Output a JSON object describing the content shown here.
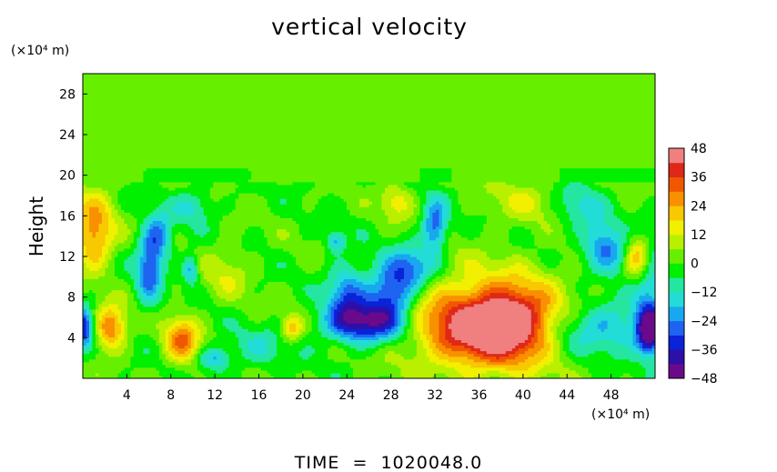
{
  "chart_data": {
    "type": "heatmap",
    "title": "vertical velocity",
    "xlabel": "",
    "ylabel": "Height",
    "x_unit_label": "(×10⁴ m)",
    "y_unit_label": "(×10⁴ m)",
    "footer": "TIME  =  1020048.0",
    "xlim": [
      0,
      52
    ],
    "ylim": [
      0,
      30
    ],
    "x_ticks": [
      4,
      8,
      12,
      16,
      20,
      24,
      28,
      32,
      36,
      40,
      44,
      48
    ],
    "y_ticks": [
      4,
      8,
      12,
      16,
      20,
      24,
      28
    ],
    "colorbar": {
      "ticks": [
        48,
        36,
        24,
        12,
        0,
        -12,
        -24,
        -36,
        -48
      ],
      "range": [
        -48,
        48
      ],
      "colors": [
        "#6a0a8a",
        "#2e0fa8",
        "#0a22d8",
        "#1e64f0",
        "#18a8f0",
        "#22dcd8",
        "#24e6a0",
        "#00f000",
        "#66f000",
        "#b8f000",
        "#f0f000",
        "#f8c800",
        "#f89000",
        "#f05800",
        "#e02818",
        "#f08080"
      ]
    },
    "background_value": 0,
    "features": [
      {
        "x": 35.5,
        "y": 5,
        "sx": 3.5,
        "sy": 2.6,
        "v": 36,
        "label": "strong updraft core"
      },
      {
        "x": 39.5,
        "y": 5.5,
        "sx": 2.5,
        "sy": 2.4,
        "v": 30,
        "label": "updraft shoulder"
      },
      {
        "x": 37.5,
        "y": 6,
        "sx": 5.5,
        "sy": 4,
        "v": 14,
        "label": "updraft envelope"
      },
      {
        "x": 2.5,
        "y": 5,
        "sx": 1,
        "sy": 1.5,
        "v": 32,
        "label": "updraft"
      },
      {
        "x": 9,
        "y": 3.8,
        "sx": 1.1,
        "sy": 1.6,
        "v": 30,
        "label": "updraft"
      },
      {
        "x": 1,
        "y": 13.5,
        "sx": 1.2,
        "sy": 2,
        "v": 26,
        "label": "updraft"
      },
      {
        "x": 50.5,
        "y": 12,
        "sx": 0.9,
        "sy": 1.5,
        "v": 30,
        "label": "updraft"
      },
      {
        "x": 19,
        "y": 5,
        "sx": 0.7,
        "sy": 0.9,
        "v": 22,
        "label": "updraft"
      },
      {
        "x": 28.5,
        "y": 17.5,
        "sx": 1,
        "sy": 1.2,
        "v": 15,
        "label": "updraft"
      },
      {
        "x": 13,
        "y": 10.5,
        "sx": 1.5,
        "sy": 2,
        "v": 10,
        "label": "weak updraft"
      },
      {
        "x": 1,
        "y": 17,
        "sx": 1.5,
        "sy": 2,
        "v": 12,
        "label": "weak updraft"
      },
      {
        "x": 25.5,
        "y": 5.5,
        "sx": 2.5,
        "sy": 1.4,
        "v": -40,
        "label": "downdraft band"
      },
      {
        "x": 28,
        "y": 8.5,
        "sx": 1.5,
        "sy": 2,
        "v": -34,
        "label": "downdraft band"
      },
      {
        "x": 24,
        "y": 8.5,
        "sx": 1.2,
        "sy": 2,
        "v": -24,
        "label": "downdraft band"
      },
      {
        "x": 30,
        "y": 11,
        "sx": 1.4,
        "sy": 1.5,
        "v": -22,
        "label": "downdraft band"
      },
      {
        "x": 47,
        "y": 5,
        "sx": 3.5,
        "sy": 1.8,
        "v": -22,
        "label": "downdraft"
      },
      {
        "x": 51.5,
        "y": 4.5,
        "sx": 0.8,
        "sy": 1.6,
        "v": -48,
        "label": "strong downdraft"
      },
      {
        "x": 51.5,
        "y": 10,
        "sx": 1,
        "sy": 3,
        "v": -20,
        "label": "downdraft"
      },
      {
        "x": 47,
        "y": 13.5,
        "sx": 1.2,
        "sy": 1.5,
        "v": -22,
        "label": "downdraft"
      },
      {
        "x": 48.5,
        "y": 12,
        "sx": 1.2,
        "sy": 1.3,
        "v": -18,
        "label": "downdraft"
      },
      {
        "x": 6,
        "y": 11,
        "sx": 0.8,
        "sy": 2.5,
        "v": -28,
        "label": "downdraft"
      },
      {
        "x": 7,
        "y": 14,
        "sx": 0.8,
        "sy": 1.6,
        "v": -22,
        "label": "downdraft"
      },
      {
        "x": 9.8,
        "y": 10.8,
        "sx": 0.5,
        "sy": 1,
        "v": -22,
        "label": "downdraft"
      },
      {
        "x": 0,
        "y": 5,
        "sx": 0.7,
        "sy": 1.5,
        "v": -36,
        "label": "downdraft"
      },
      {
        "x": 32,
        "y": 15,
        "sx": 0.8,
        "sy": 1.8,
        "v": -30,
        "label": "downdraft"
      },
      {
        "x": 12,
        "y": 2,
        "sx": 1,
        "sy": 0.8,
        "v": -20,
        "label": "downdraft"
      },
      {
        "x": 23,
        "y": 13.5,
        "sx": 0.6,
        "sy": 0.7,
        "v": -20,
        "label": "downdraft"
      },
      {
        "x": 10,
        "y": 17,
        "sx": 1.2,
        "sy": 1.2,
        "v": -14,
        "label": "weak downdraft"
      },
      {
        "x": 45,
        "y": 17,
        "sx": 1.5,
        "sy": 1.5,
        "v": -14,
        "label": "weak downdraft"
      },
      {
        "x": 16,
        "y": 3,
        "sx": 2,
        "sy": 1.5,
        "v": -10,
        "label": "weak downdraft"
      },
      {
        "x": 40,
        "y": 17.5,
        "sx": 2.5,
        "sy": 1.5,
        "v": 10,
        "label": "weak updraft"
      }
    ]
  }
}
